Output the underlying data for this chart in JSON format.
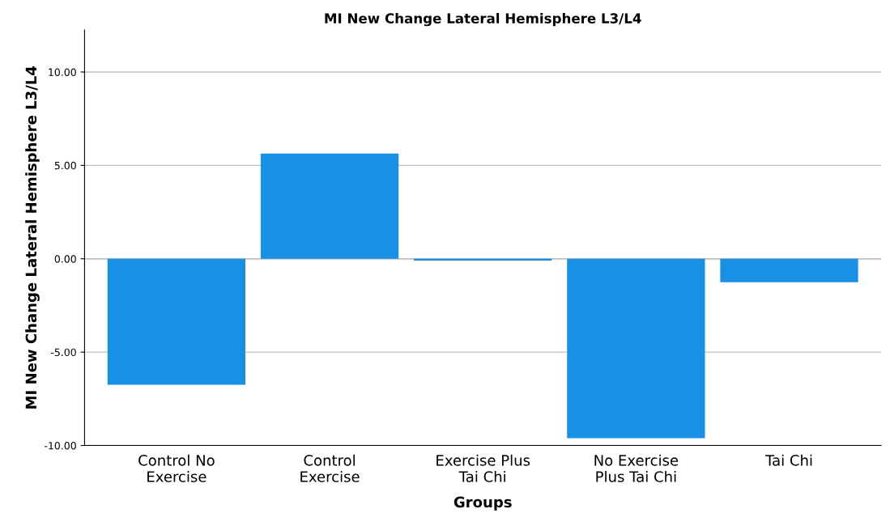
{
  "chart_data": {
    "type": "bar",
    "title": "MI New Change Lateral Hemisphere L3/L4",
    "xlabel": "Groups",
    "ylabel": "MI New Change Lateral Hemisphere L3/L4",
    "categories": [
      "Control No\nExercise",
      "Control\nExercise",
      "Exercise Plus\nTai Chi",
      "No Exercise\nPlus Tai Chi",
      "Tai Chi"
    ],
    "values": [
      -6.75,
      5.63,
      -0.1,
      -9.61,
      -1.26
    ],
    "color": "#1790e6",
    "ylim": [
      -10,
      12.25
    ],
    "yticks": [
      {
        "value": -10,
        "label": "-10.00"
      },
      {
        "value": -5,
        "label": "-5.00"
      },
      {
        "value": 0,
        "label": "0.00"
      },
      {
        "value": 5,
        "label": "5.00"
      },
      {
        "value": 10,
        "label": "10.00"
      }
    ],
    "grid": "y"
  }
}
